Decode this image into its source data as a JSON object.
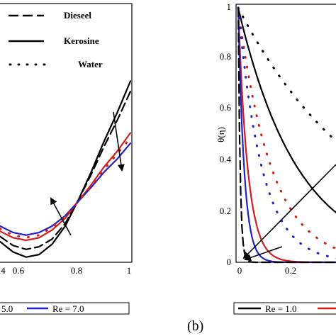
{
  "chart_data": [
    {
      "type": "line",
      "xlim": [
        0.5,
        1.0
      ],
      "ylim": [
        0,
        1
      ],
      "x_ticks": [
        "0.6",
        "0.8",
        "1"
      ],
      "legend": {
        "placement": "top-left",
        "entries": [
          {
            "label": "Dieseel",
            "style": "dashed"
          },
          {
            "label": "Kerosine",
            "style": "solid"
          },
          {
            "label": "Water",
            "style": "dotted"
          }
        ]
      },
      "bottom_legend": [
        "5.0",
        "Re = 7.0"
      ],
      "series": [
        {
          "color": "#000000",
          "style": "solid",
          "x": [
            0.5,
            0.55,
            0.6,
            0.65,
            0.7,
            0.75,
            0.8,
            0.85,
            0.9,
            0.95,
            1.0
          ],
          "y": [
            0.08,
            0.04,
            0.02,
            0.03,
            0.07,
            0.14,
            0.24,
            0.35,
            0.47,
            0.58,
            0.7
          ]
        },
        {
          "color": "#000000",
          "style": "dashed",
          "x": [
            0.5,
            0.55,
            0.6,
            0.65,
            0.7,
            0.75,
            0.8,
            0.85,
            0.9,
            0.95,
            1.0
          ],
          "y": [
            0.1,
            0.065,
            0.05,
            0.06,
            0.09,
            0.15,
            0.24,
            0.34,
            0.45,
            0.55,
            0.66
          ]
        },
        {
          "color": "#d81a1a",
          "style": "solid",
          "x": [
            0.5,
            0.55,
            0.6,
            0.65,
            0.7,
            0.75,
            0.8,
            0.85,
            0.9,
            0.95,
            1.0
          ],
          "y": [
            0.12,
            0.095,
            0.085,
            0.095,
            0.125,
            0.17,
            0.235,
            0.3,
            0.37,
            0.43,
            0.5
          ]
        },
        {
          "color": "#2222cc",
          "style": "solid",
          "x": [
            0.5,
            0.55,
            0.6,
            0.65,
            0.7,
            0.75,
            0.8,
            0.85,
            0.9,
            0.95,
            1.0
          ],
          "y": [
            0.14,
            0.115,
            0.105,
            0.115,
            0.14,
            0.18,
            0.235,
            0.29,
            0.35,
            0.4,
            0.46
          ]
        },
        {
          "color": "#d81a1a",
          "style": "dotted",
          "x": [
            0.5,
            0.55,
            0.6,
            0.65,
            0.7,
            0.75,
            0.8,
            0.85,
            0.9,
            0.95,
            1.0
          ],
          "y": [
            0.13,
            0.105,
            0.095,
            0.105,
            0.135,
            0.175,
            0.235,
            0.295,
            0.36,
            0.42,
            0.48
          ]
        }
      ]
    },
    {
      "type": "line",
      "panel_label": "(b)",
      "ylabel": "θ(η)",
      "xlim": [
        0,
        0.42
      ],
      "ylim": [
        0,
        1
      ],
      "x_ticks": [
        "0",
        "0.2"
      ],
      "y_ticks": [
        "0",
        "0.2",
        "0.4",
        "0.6",
        "0.8",
        "1"
      ],
      "bottom_legend": [
        "Re = 1.0"
      ],
      "series": [
        {
          "color": "#000000",
          "style": "solid",
          "decay": 0.25
        },
        {
          "color": "#000000",
          "style": "dotted",
          "decay": 0.55
        },
        {
          "color": "#d81a1a",
          "style": "solid",
          "decay": 0.04
        },
        {
          "color": "#d81a1a",
          "style": "dotted",
          "decay": 0.14
        },
        {
          "color": "#2222cc",
          "style": "solid",
          "decay": 0.025
        },
        {
          "color": "#2222cc",
          "style": "dotted",
          "decay": 0.1
        },
        {
          "color": "#000000",
          "style": "dashed",
          "decay": 0.008
        }
      ]
    }
  ]
}
